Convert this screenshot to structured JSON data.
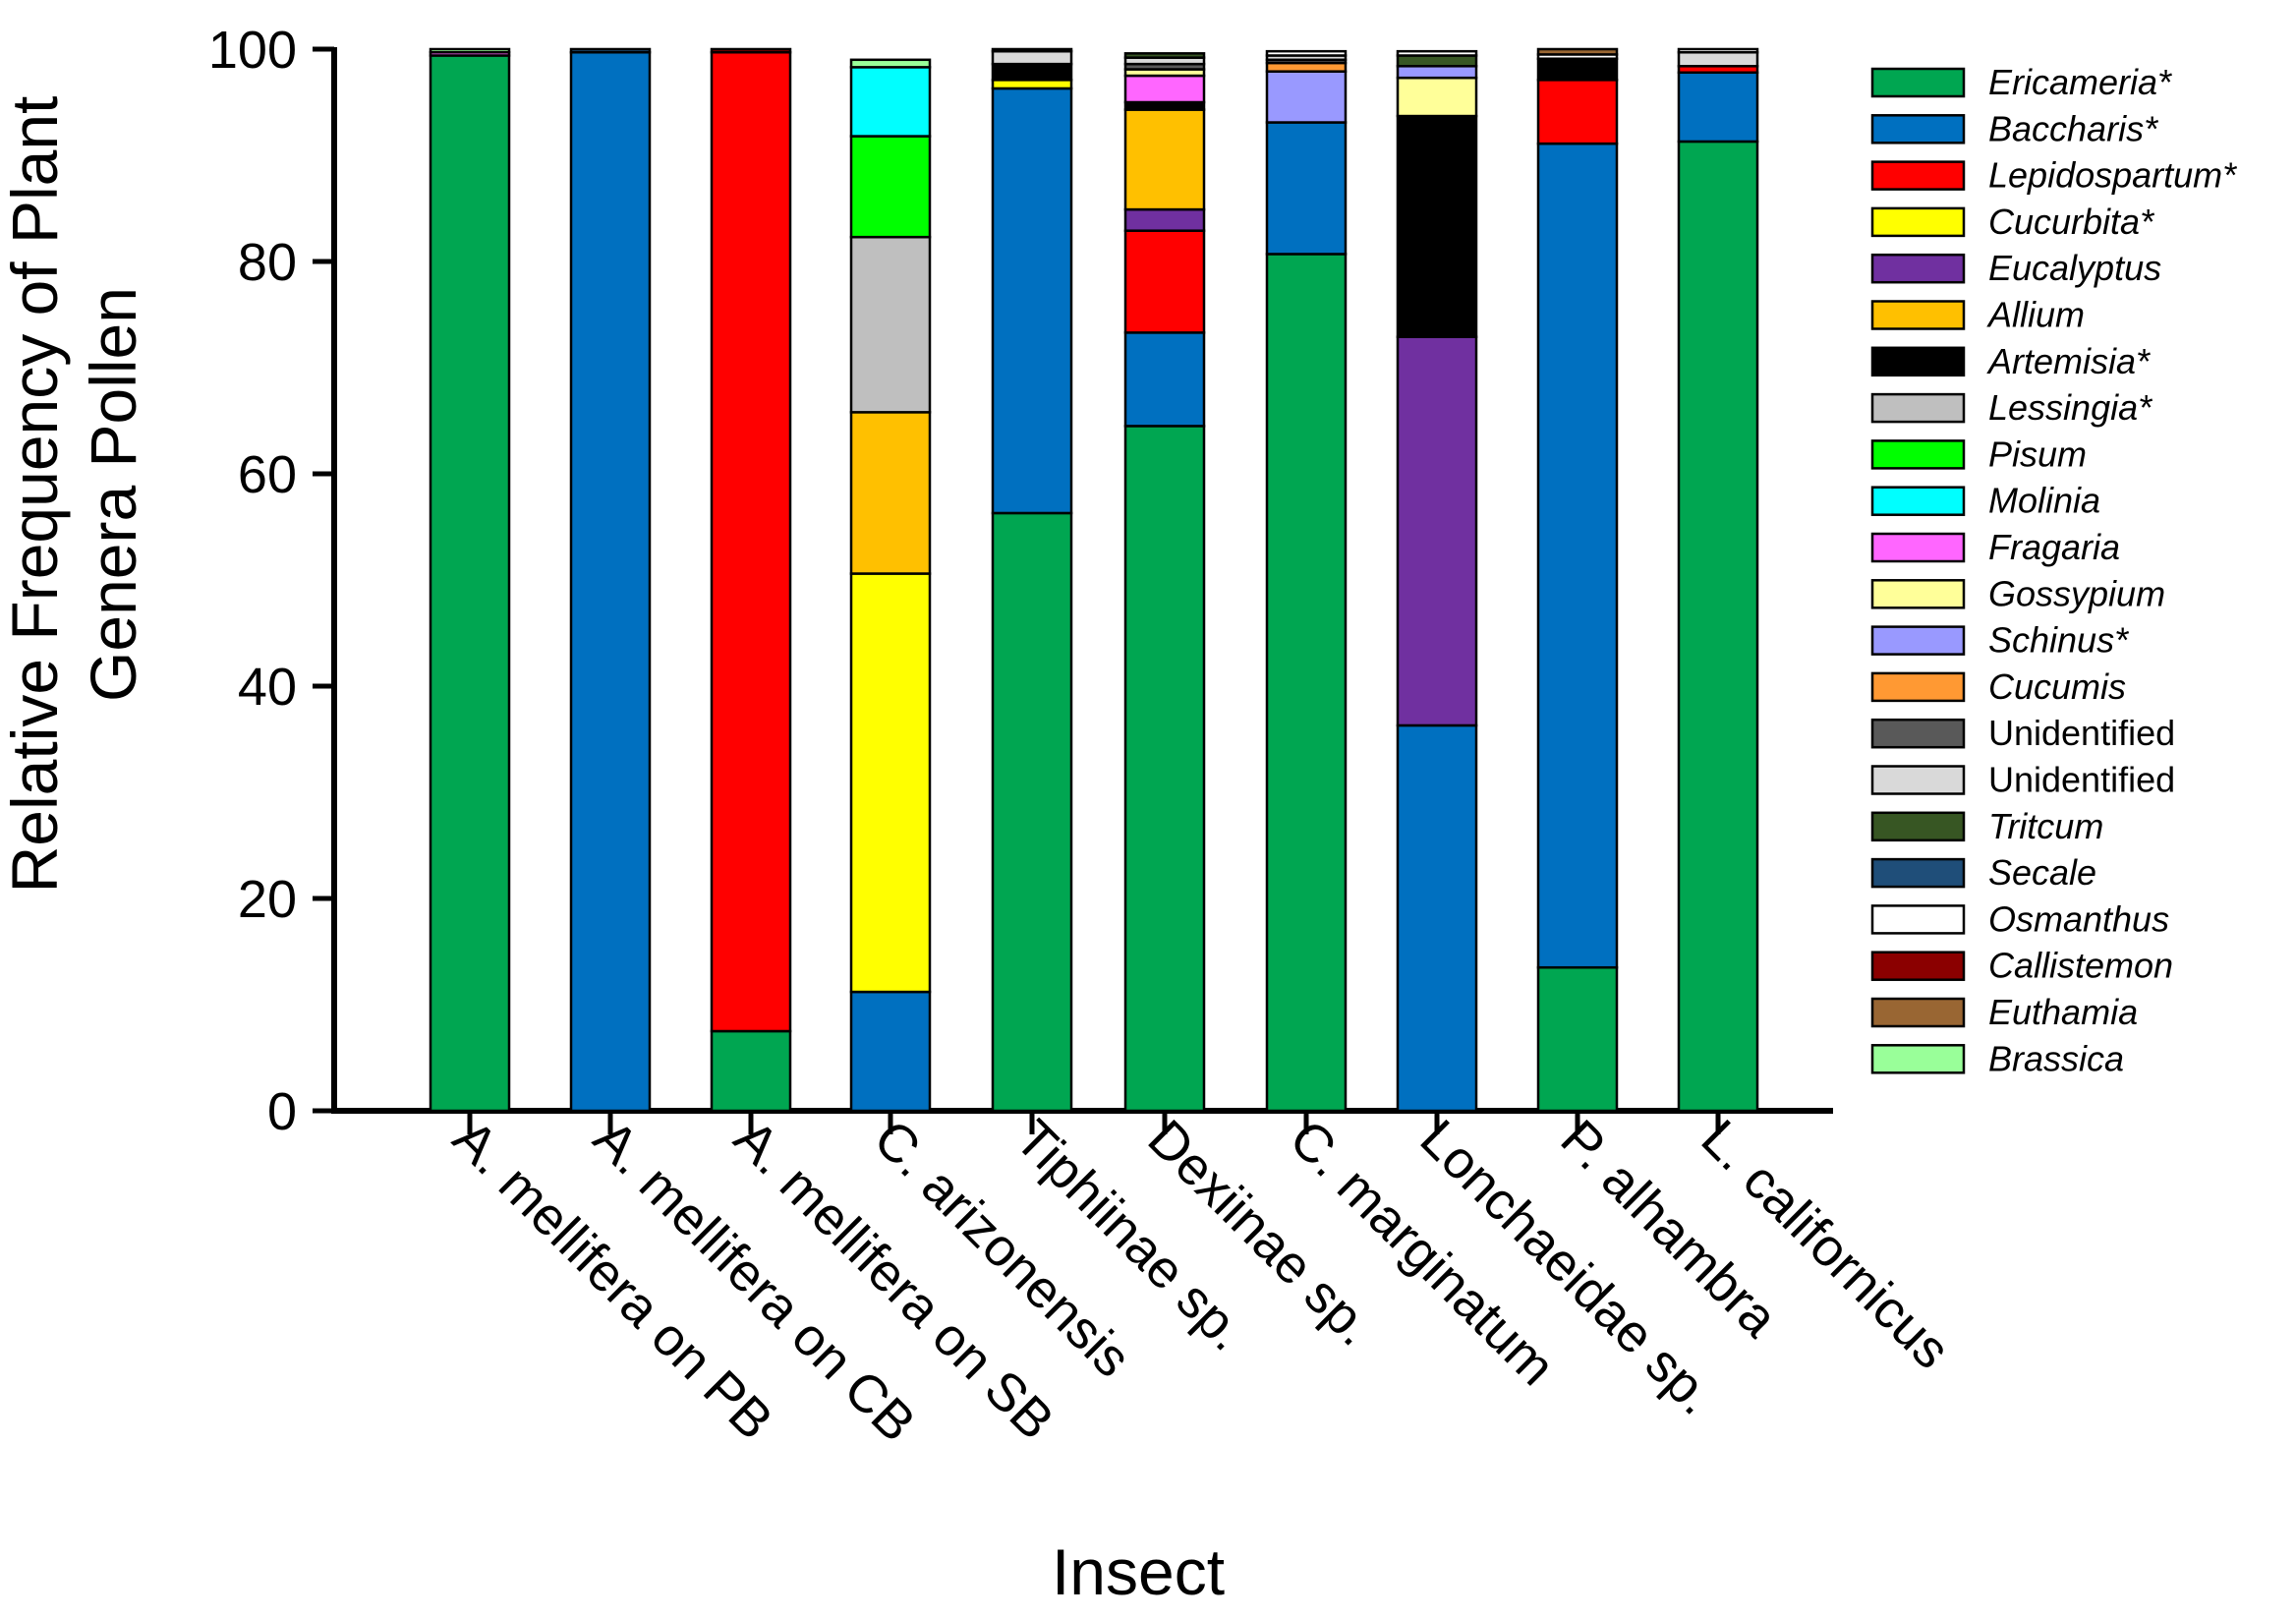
{
  "chart_data": {
    "type": "bar",
    "stacked": true,
    "title": "",
    "xlabel": "Insect",
    "ylabel_lines": [
      "Relative Frequency of Plant",
      "Genera Pollen"
    ],
    "ylim": [
      0,
      100
    ],
    "yticks": [
      0,
      20,
      40,
      60,
      80,
      100
    ],
    "legend_position": "right",
    "categories": [
      "A. mellifera on PB",
      "A. mellifera on CB",
      "A. mellifera on SB",
      "C. arizonensis",
      "Tiphiinae sp.",
      "Dexiinae sp.",
      "C. marginatum",
      "Lonchaeidae sp.",
      "P. alhambra",
      "L. californicus"
    ],
    "series": [
      {
        "name": "Ericameria*",
        "italic": true,
        "color": "#00A651",
        "values": [
          99.4,
          0,
          7.5,
          0,
          56.3,
          64.5,
          80.7,
          0,
          13.5,
          91.3
        ]
      },
      {
        "name": "Baccharis*",
        "italic": true,
        "color": "#0070C0",
        "values": [
          0,
          99.7,
          0,
          11.2,
          40.0,
          8.8,
          12.4,
          36.3,
          77.6,
          6.5
        ]
      },
      {
        "name": "Lepidospartum*",
        "italic": true,
        "color": "#FF0000",
        "values": [
          0,
          0,
          92.2,
          0,
          0,
          9.6,
          0,
          0,
          6.0,
          0.6
        ]
      },
      {
        "name": "Cucurbita*",
        "italic": true,
        "color": "#FFFF00",
        "values": [
          0,
          0,
          0,
          39.4,
          0.8,
          0,
          0,
          0,
          0,
          0
        ]
      },
      {
        "name": "Eucalyptus",
        "italic": true,
        "color": "#7030A0",
        "values": [
          0,
          0,
          0,
          0,
          0,
          2.0,
          0,
          36.6,
          0,
          0
        ]
      },
      {
        "name": "Allium",
        "italic": true,
        "color": "#FFC000",
        "values": [
          0,
          0,
          0,
          15.2,
          0,
          9.4,
          0,
          0,
          0,
          0
        ]
      },
      {
        "name": "Artemisia*",
        "italic": true,
        "color": "#000000",
        "values": [
          0,
          0,
          0,
          0,
          1.5,
          0.7,
          0,
          20.8,
          2.0,
          0
        ]
      },
      {
        "name": "Lessingia*",
        "italic": true,
        "color": "#BFBFBF",
        "values": [
          0,
          0,
          0,
          16.5,
          0,
          0,
          0,
          0,
          0,
          0
        ]
      },
      {
        "name": "Pisum",
        "italic": true,
        "color": "#00FF00",
        "values": [
          0,
          0,
          0,
          9.5,
          0,
          0,
          0,
          0,
          0,
          0
        ]
      },
      {
        "name": "Molinia",
        "italic": true,
        "color": "#00FFFF",
        "values": [
          0,
          0,
          0,
          6.5,
          0,
          0,
          0,
          0,
          0,
          0
        ]
      },
      {
        "name": "Fragaria",
        "italic": true,
        "color": "#FF66FF",
        "values": [
          0.3,
          0,
          0,
          0,
          0,
          2.5,
          0,
          0,
          0,
          0
        ]
      },
      {
        "name": "Gossypium",
        "italic": true,
        "color": "#FFFF99",
        "values": [
          0,
          0,
          0,
          0,
          0,
          0.6,
          0,
          3.6,
          0,
          0
        ]
      },
      {
        "name": "Schinus*",
        "italic": true,
        "color": "#9999FF",
        "values": [
          0,
          0,
          0,
          0,
          0,
          0,
          4.8,
          1.1,
          0,
          0
        ]
      },
      {
        "name": "Cucumis",
        "italic": true,
        "color": "#FF9933",
        "values": [
          0,
          0,
          0,
          0,
          0,
          0,
          0.8,
          0,
          0,
          0
        ]
      },
      {
        "name": "Unidentified",
        "italic": false,
        "color": "#595959",
        "values": [
          0,
          0,
          0,
          0,
          0,
          0.5,
          0.3,
          0,
          0,
          0
        ]
      },
      {
        "name": "Unidentified",
        "italic": false,
        "color": "#D9D9D9",
        "values": [
          0,
          0,
          0,
          0,
          1.2,
          0.6,
          0.4,
          0,
          0,
          1.3
        ]
      },
      {
        "name": "Tritcum",
        "italic": true,
        "color": "#375623",
        "values": [
          0,
          0,
          0,
          0,
          0,
          0.4,
          0,
          1.0,
          0,
          0
        ]
      },
      {
        "name": "Secale",
        "italic": true,
        "color": "#1F4E79",
        "values": [
          0,
          0.3,
          0,
          0,
          0,
          0,
          0,
          0,
          0,
          0
        ]
      },
      {
        "name": "Osmanthus",
        "italic": true,
        "color": "#FFFFFF",
        "values": [
          0,
          0,
          0,
          0,
          0.2,
          0,
          0.4,
          0.4,
          0.4,
          0.3
        ]
      },
      {
        "name": "Callistemon",
        "italic": true,
        "color": "#8B0000",
        "values": [
          0,
          0,
          0.3,
          0,
          0,
          0,
          0,
          0,
          0,
          0
        ]
      },
      {
        "name": "Euthamia",
        "italic": true,
        "color": "#996633",
        "values": [
          0,
          0,
          0,
          0,
          0,
          0,
          0,
          0,
          0.5,
          0
        ]
      },
      {
        "name": "Brassica",
        "italic": true,
        "color": "#99FF99",
        "values": [
          0.3,
          0,
          0,
          0.7,
          0,
          0,
          0,
          0,
          0,
          0
        ]
      }
    ]
  }
}
